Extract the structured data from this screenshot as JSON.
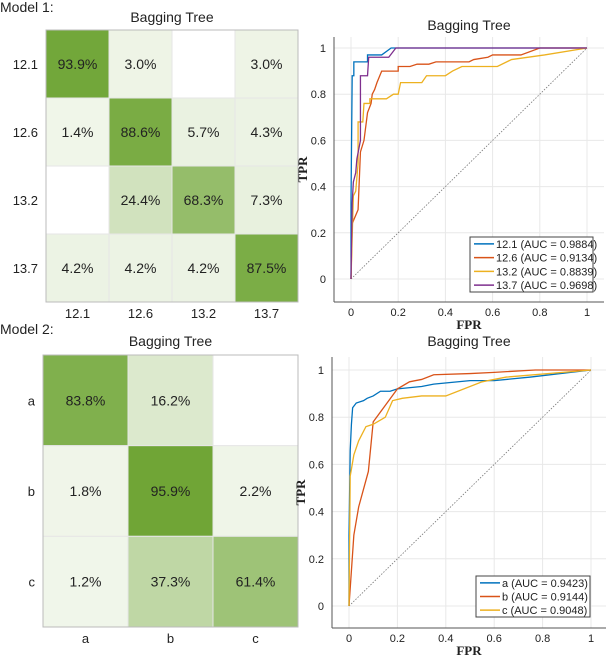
{
  "panels": [
    {
      "label": "Model 1:"
    },
    {
      "label": "Model 2:"
    }
  ],
  "chart_data": [
    {
      "type": "heatmap",
      "title": "Bagging Tree",
      "classes": [
        "12.1",
        "12.6",
        "13.2",
        "13.7"
      ],
      "values": [
        [
          93.9,
          3.0,
          null,
          3.0
        ],
        [
          1.4,
          88.6,
          5.7,
          4.3
        ],
        [
          null,
          24.4,
          68.3,
          7.3
        ],
        [
          4.2,
          4.2,
          4.2,
          87.5
        ]
      ],
      "unit": "%",
      "colors": {
        "low": "#f2f7ec",
        "high": "#6aa22e"
      }
    },
    {
      "type": "line",
      "title": "Bagging Tree",
      "xlabel": "FPR",
      "ylabel": "TPR",
      "xlim": [
        0,
        1
      ],
      "ylim": [
        -0.1,
        1.05
      ],
      "xticks": [
        "0",
        "0.2",
        "0.4",
        "0.6",
        "0.8",
        "1"
      ],
      "yticks": [
        "0",
        "0.2",
        "0.4",
        "0.6",
        "0.8",
        "1"
      ],
      "grid": true,
      "legend": "bottom-right",
      "series": [
        {
          "name": "12.1 (AUC = 0.9884)",
          "color": "#0072bd",
          "points": [
            [
              0,
              0
            ],
            [
              0,
              0.33
            ],
            [
              0.005,
              0.88
            ],
            [
              0.012,
              0.88
            ],
            [
              0.012,
              0.94
            ],
            [
              0.07,
              0.94
            ],
            [
              0.07,
              0.97
            ],
            [
              0.13,
              0.97
            ],
            [
              0.17,
              1
            ],
            [
              1,
              1
            ]
          ]
        },
        {
          "name": "12.6 (AUC = 0.9134)",
          "color": "#d95319",
          "points": [
            [
              0,
              0
            ],
            [
              0.005,
              0.24
            ],
            [
              0.03,
              0.3
            ],
            [
              0.04,
              0.55
            ],
            [
              0.055,
              0.6
            ],
            [
              0.06,
              0.64
            ],
            [
              0.07,
              0.72
            ],
            [
              0.085,
              0.76
            ],
            [
              0.09,
              0.8
            ],
            [
              0.1,
              0.82
            ],
            [
              0.11,
              0.85
            ],
            [
              0.13,
              0.9
            ],
            [
              0.2,
              0.9
            ],
            [
              0.2,
              0.92
            ],
            [
              0.25,
              0.92
            ],
            [
              0.28,
              0.93
            ],
            [
              0.33,
              0.93
            ],
            [
              0.36,
              0.94
            ],
            [
              0.5,
              0.94
            ],
            [
              0.52,
              0.95
            ],
            [
              0.58,
              0.96
            ],
            [
              0.6,
              0.97
            ],
            [
              0.72,
              0.97
            ],
            [
              0.8,
              1
            ],
            [
              1,
              1
            ]
          ]
        },
        {
          "name": "13.2 (AUC = 0.8839)",
          "color": "#edb120",
          "points": [
            [
              0,
              0
            ],
            [
              0.005,
              0.18
            ],
            [
              0.01,
              0.36
            ],
            [
              0.02,
              0.38
            ],
            [
              0.03,
              0.5
            ],
            [
              0.03,
              0.68
            ],
            [
              0.05,
              0.68
            ],
            [
              0.055,
              0.76
            ],
            [
              0.08,
              0.76
            ],
            [
              0.08,
              0.78
            ],
            [
              0.15,
              0.78
            ],
            [
              0.18,
              0.8
            ],
            [
              0.2,
              0.8
            ],
            [
              0.21,
              0.85
            ],
            [
              0.3,
              0.85
            ],
            [
              0.32,
              0.88
            ],
            [
              0.4,
              0.88
            ],
            [
              0.43,
              0.9
            ],
            [
              0.47,
              0.92
            ],
            [
              0.62,
              0.92
            ],
            [
              0.68,
              0.95
            ],
            [
              0.82,
              0.97
            ],
            [
              1,
              1
            ]
          ]
        },
        {
          "name": "13.7 (AUC = 0.9698)",
          "color": "#7e2f8e",
          "points": [
            [
              0,
              0
            ],
            [
              0.005,
              0.33
            ],
            [
              0.01,
              0.42
            ],
            [
              0.02,
              0.46
            ],
            [
              0.025,
              0.52
            ],
            [
              0.04,
              0.6
            ],
            [
              0.04,
              0.88
            ],
            [
              0.07,
              0.88
            ],
            [
              0.075,
              0.96
            ],
            [
              0.16,
              0.96
            ],
            [
              0.19,
              1
            ],
            [
              1,
              1
            ]
          ]
        }
      ]
    },
    {
      "type": "heatmap",
      "title": "Bagging Tree",
      "classes": [
        "a",
        "b",
        "c"
      ],
      "values": [
        [
          83.8,
          16.2,
          null
        ],
        [
          1.8,
          95.9,
          2.2
        ],
        [
          1.2,
          37.3,
          61.4
        ]
      ],
      "unit": "%",
      "colors": {
        "low": "#f2f7ec",
        "high": "#6aa22e"
      }
    },
    {
      "type": "line",
      "title": "Bagging Tree",
      "xlabel": "FPR",
      "ylabel": "TPR",
      "xlim": [
        0,
        1
      ],
      "ylim": [
        -0.1,
        1.05
      ],
      "xticks": [
        "0",
        "0.2",
        "0.4",
        "0.6",
        "0.8",
        "1"
      ],
      "yticks": [
        "0",
        "0.2",
        "0.4",
        "0.6",
        "0.8",
        "1"
      ],
      "grid": true,
      "legend": "bottom-right",
      "series": [
        {
          "name": "a (AUC = 0.9423)",
          "color": "#0072bd",
          "points": [
            [
              0,
              0
            ],
            [
              0,
              0.3
            ],
            [
              0.005,
              0.66
            ],
            [
              0.01,
              0.77
            ],
            [
              0.015,
              0.84
            ],
            [
              0.03,
              0.86
            ],
            [
              0.06,
              0.87
            ],
            [
              0.075,
              0.88
            ],
            [
              0.1,
              0.89
            ],
            [
              0.13,
              0.91
            ],
            [
              0.17,
              0.91
            ],
            [
              0.2,
              0.92
            ],
            [
              0.3,
              0.93
            ],
            [
              0.35,
              0.94
            ],
            [
              0.5,
              0.955
            ],
            [
              0.6,
              0.955
            ],
            [
              0.75,
              0.97
            ],
            [
              1,
              1
            ]
          ]
        },
        {
          "name": "b (AUC = 0.9144)",
          "color": "#d95319",
          "points": [
            [
              0,
              0
            ],
            [
              0.02,
              0.3
            ],
            [
              0.04,
              0.42
            ],
            [
              0.08,
              0.57
            ],
            [
              0.1,
              0.78
            ],
            [
              0.15,
              0.85
            ],
            [
              0.2,
              0.92
            ],
            [
              0.25,
              0.95
            ],
            [
              0.3,
              0.96
            ],
            [
              0.35,
              0.98
            ],
            [
              0.5,
              0.985
            ],
            [
              0.6,
              0.99
            ],
            [
              0.77,
              1
            ],
            [
              1,
              1
            ]
          ]
        },
        {
          "name": "c (AUC = 0.9048)",
          "color": "#edb120",
          "points": [
            [
              0,
              0
            ],
            [
              0.005,
              0.55
            ],
            [
              0.02,
              0.64
            ],
            [
              0.04,
              0.7
            ],
            [
              0.07,
              0.76
            ],
            [
              0.1,
              0.77
            ],
            [
              0.15,
              0.8
            ],
            [
              0.18,
              0.87
            ],
            [
              0.22,
              0.88
            ],
            [
              0.3,
              0.89
            ],
            [
              0.4,
              0.89
            ],
            [
              0.55,
              0.95
            ],
            [
              0.65,
              0.97
            ],
            [
              1,
              1
            ]
          ]
        }
      ]
    }
  ]
}
